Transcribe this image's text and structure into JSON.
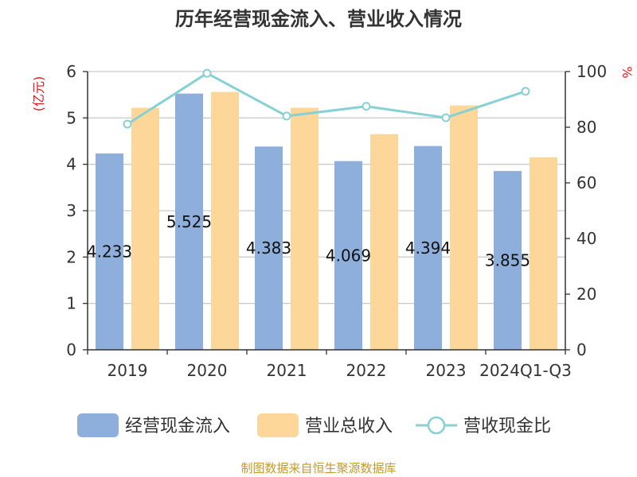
{
  "chart_data": {
    "type": "bar",
    "title": "历年经营现金流入、营业收入情况",
    "categories": [
      "2019",
      "2020",
      "2021",
      "2022",
      "2023",
      "2024Q1-Q3"
    ],
    "series": [
      {
        "name": "经营现金流入",
        "axis": "left",
        "kind": "bar",
        "color": "#8eaedb",
        "values": [
          4.233,
          5.525,
          4.383,
          4.069,
          4.394,
          3.855
        ],
        "labels": [
          "4.233",
          "5.525",
          "4.383",
          "4.069",
          "4.394",
          "3.855"
        ]
      },
      {
        "name": "营业总收入",
        "axis": "left",
        "kind": "bar",
        "color": "#fdd79a",
        "values": [
          5.22,
          5.56,
          5.22,
          4.65,
          5.27,
          4.15
        ]
      },
      {
        "name": "营收现金比",
        "axis": "right",
        "kind": "line",
        "color": "#86d1d4",
        "values": [
          81.1,
          99.4,
          84.0,
          87.5,
          83.4,
          92.9
        ]
      }
    ],
    "left_axis": {
      "unit": "(亿元)",
      "ylim": [
        0,
        6
      ],
      "ticks": [
        "0",
        "1",
        "2",
        "3",
        "4",
        "5",
        "6"
      ]
    },
    "right_axis": {
      "unit": "%",
      "ylim": [
        0,
        100
      ],
      "ticks": [
        "0",
        "20",
        "40",
        "60",
        "80",
        "100"
      ]
    },
    "grid": true,
    "legend_position": "bottom"
  },
  "source": "制图数据来自恒生聚源数据库"
}
